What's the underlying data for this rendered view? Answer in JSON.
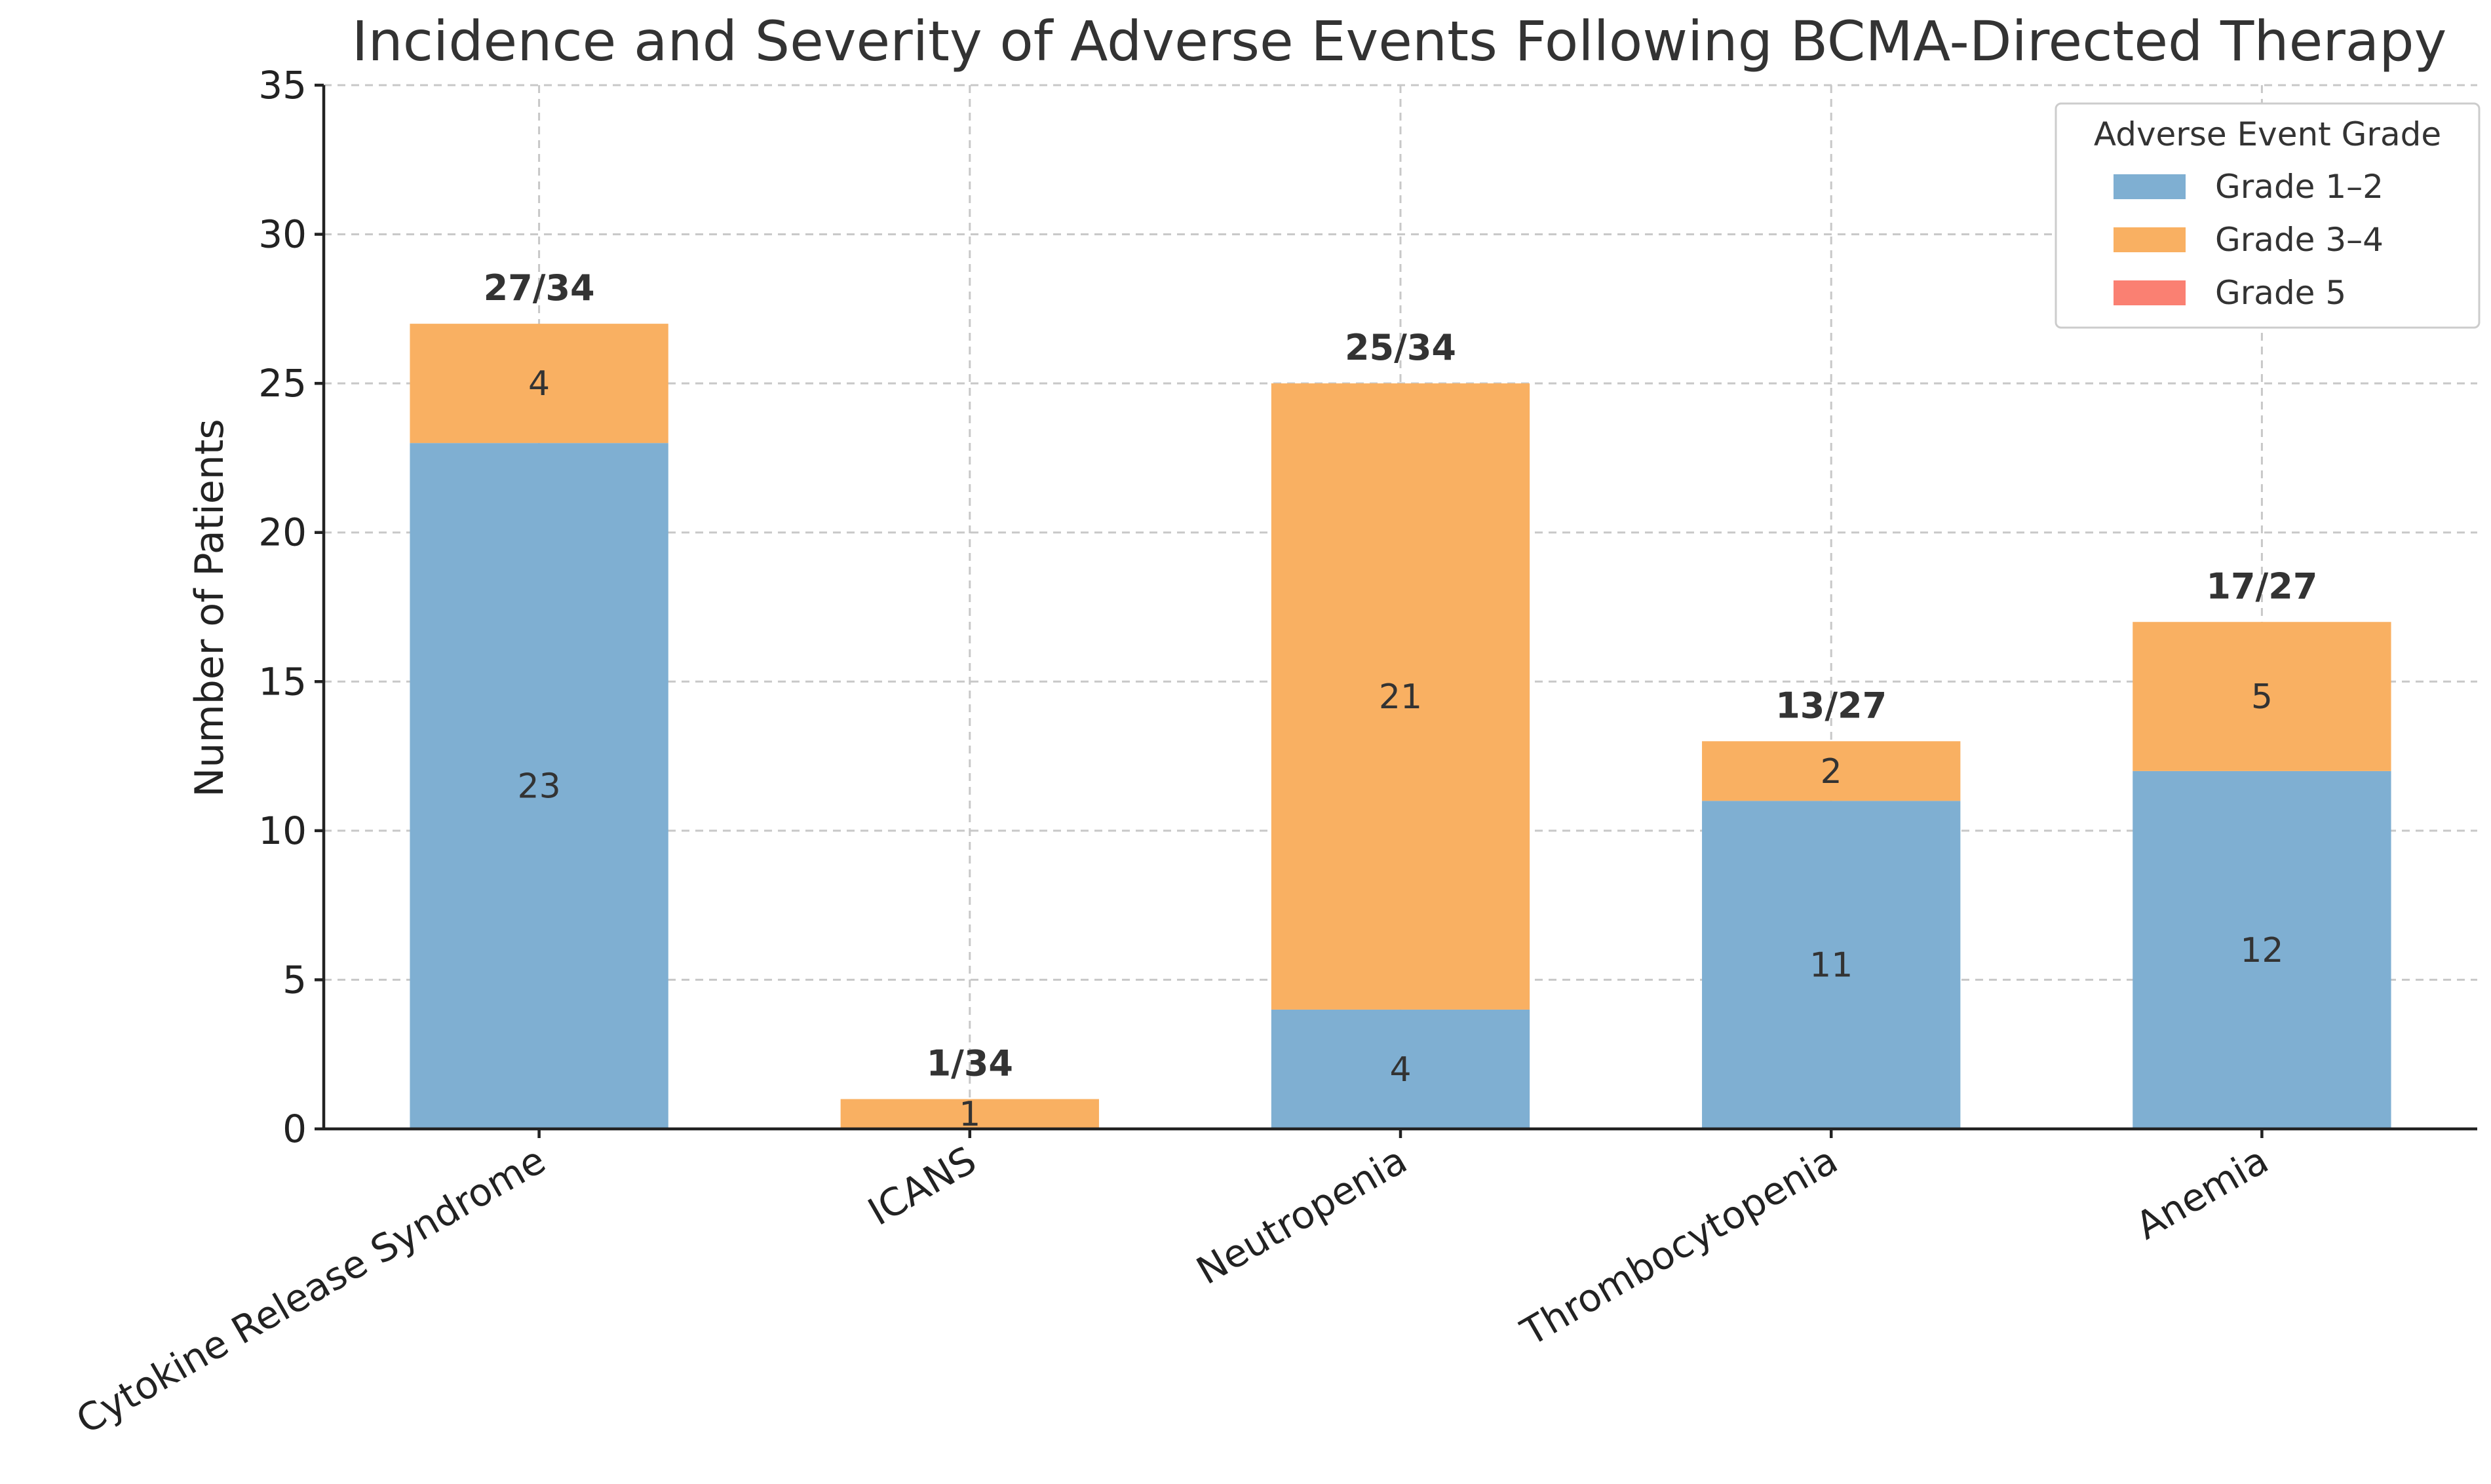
{
  "chart_data": {
    "type": "bar",
    "stacked": true,
    "title": "Incidence and Severity of Adverse Events Following BCMA-Directed Therapy",
    "xlabel": "",
    "ylabel": "Number of Patients",
    "ylim": [
      0,
      35
    ],
    "yticks": [
      0,
      5,
      10,
      15,
      20,
      25,
      30,
      35
    ],
    "grid": true,
    "legend": {
      "title": "Adverse Event Grade",
      "placement": "top-right"
    },
    "categories": [
      "Cytokine Release Syndrome",
      "ICANS",
      "Neutropenia",
      "Thrombocytopenia",
      "Anemia"
    ],
    "series": [
      {
        "name": "Grade 1–2",
        "color": "#7fafd2",
        "values": [
          23,
          0,
          4,
          11,
          12
        ]
      },
      {
        "name": "Grade 3–4",
        "color": "#f9b062",
        "values": [
          4,
          1,
          21,
          2,
          5
        ]
      },
      {
        "name": "Grade 5",
        "color": "#fa8072",
        "values": [
          0,
          0,
          0,
          0,
          0
        ]
      }
    ],
    "totals": [
      "27/34",
      "1/34",
      "25/34",
      "13/27",
      "17/27"
    ]
  }
}
